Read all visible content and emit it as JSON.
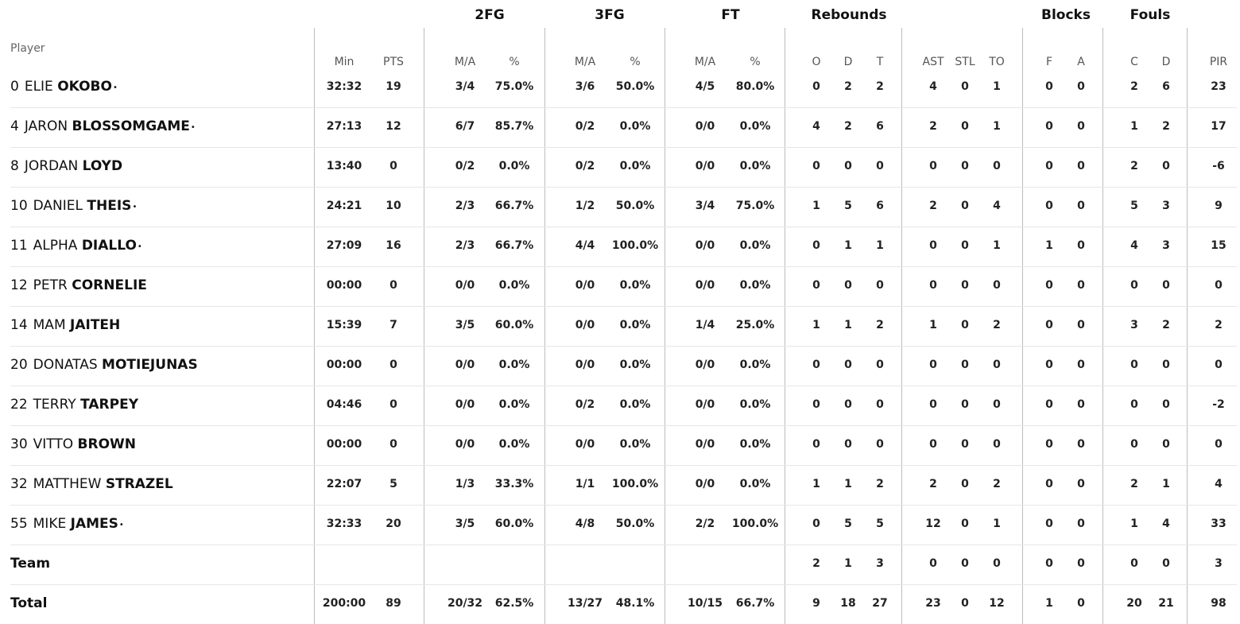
{
  "header": {
    "player_label": "Player",
    "groups": [
      "2FG",
      "3FG",
      "FT",
      "Rebounds",
      "Blocks",
      "Fouls"
    ],
    "columns": [
      "Min",
      "PTS",
      "M/A",
      "%",
      "M/A",
      "%",
      "M/A",
      "%",
      "O",
      "D",
      "T",
      "AST",
      "STL",
      "TO",
      "F",
      "A",
      "C",
      "D",
      "PIR"
    ]
  },
  "starter_mark": "•",
  "players": [
    {
      "number": "0",
      "first": "ELIE",
      "last": "OKOBO",
      "starter": true,
      "stats": [
        "32:32",
        "19",
        "3/4",
        "75.0%",
        "3/6",
        "50.0%",
        "4/5",
        "80.0%",
        "0",
        "2",
        "2",
        "4",
        "0",
        "1",
        "0",
        "0",
        "2",
        "6",
        "23"
      ]
    },
    {
      "number": "4",
      "first": "JARON",
      "last": "BLOSSOMGAME",
      "starter": true,
      "stats": [
        "27:13",
        "12",
        "6/7",
        "85.7%",
        "0/2",
        "0.0%",
        "0/0",
        "0.0%",
        "4",
        "2",
        "6",
        "2",
        "0",
        "1",
        "0",
        "0",
        "1",
        "2",
        "17"
      ]
    },
    {
      "number": "8",
      "first": "JORDAN",
      "last": "LOYD",
      "starter": false,
      "stats": [
        "13:40",
        "0",
        "0/2",
        "0.0%",
        "0/2",
        "0.0%",
        "0/0",
        "0.0%",
        "0",
        "0",
        "0",
        "0",
        "0",
        "0",
        "0",
        "0",
        "2",
        "0",
        "-6"
      ]
    },
    {
      "number": "10",
      "first": "DANIEL",
      "last": "THEIS",
      "starter": true,
      "stats": [
        "24:21",
        "10",
        "2/3",
        "66.7%",
        "1/2",
        "50.0%",
        "3/4",
        "75.0%",
        "1",
        "5",
        "6",
        "2",
        "0",
        "4",
        "0",
        "0",
        "5",
        "3",
        "9"
      ]
    },
    {
      "number": "11",
      "first": "ALPHA",
      "last": "DIALLO",
      "starter": true,
      "stats": [
        "27:09",
        "16",
        "2/3",
        "66.7%",
        "4/4",
        "100.0%",
        "0/0",
        "0.0%",
        "0",
        "1",
        "1",
        "0",
        "0",
        "1",
        "1",
        "0",
        "4",
        "3",
        "15"
      ]
    },
    {
      "number": "12",
      "first": "PETR",
      "last": "CORNELIE",
      "starter": false,
      "stats": [
        "00:00",
        "0",
        "0/0",
        "0.0%",
        "0/0",
        "0.0%",
        "0/0",
        "0.0%",
        "0",
        "0",
        "0",
        "0",
        "0",
        "0",
        "0",
        "0",
        "0",
        "0",
        "0"
      ]
    },
    {
      "number": "14",
      "first": "MAM",
      "last": "JAITEH",
      "starter": false,
      "stats": [
        "15:39",
        "7",
        "3/5",
        "60.0%",
        "0/0",
        "0.0%",
        "1/4",
        "25.0%",
        "1",
        "1",
        "2",
        "1",
        "0",
        "2",
        "0",
        "0",
        "3",
        "2",
        "2"
      ]
    },
    {
      "number": "20",
      "first": "DONATAS",
      "last": "MOTIEJUNAS",
      "starter": false,
      "stats": [
        "00:00",
        "0",
        "0/0",
        "0.0%",
        "0/0",
        "0.0%",
        "0/0",
        "0.0%",
        "0",
        "0",
        "0",
        "0",
        "0",
        "0",
        "0",
        "0",
        "0",
        "0",
        "0"
      ]
    },
    {
      "number": "22",
      "first": "TERRY",
      "last": "TARPEY",
      "starter": false,
      "stats": [
        "04:46",
        "0",
        "0/0",
        "0.0%",
        "0/2",
        "0.0%",
        "0/0",
        "0.0%",
        "0",
        "0",
        "0",
        "0",
        "0",
        "0",
        "0",
        "0",
        "0",
        "0",
        "-2"
      ]
    },
    {
      "number": "30",
      "first": "VITTO",
      "last": "BROWN",
      "starter": false,
      "stats": [
        "00:00",
        "0",
        "0/0",
        "0.0%",
        "0/0",
        "0.0%",
        "0/0",
        "0.0%",
        "0",
        "0",
        "0",
        "0",
        "0",
        "0",
        "0",
        "0",
        "0",
        "0",
        "0"
      ]
    },
    {
      "number": "32",
      "first": "MATTHEW",
      "last": "STRAZEL",
      "starter": false,
      "stats": [
        "22:07",
        "5",
        "1/3",
        "33.3%",
        "1/1",
        "100.0%",
        "0/0",
        "0.0%",
        "1",
        "1",
        "2",
        "2",
        "0",
        "2",
        "0",
        "0",
        "2",
        "1",
        "4"
      ]
    },
    {
      "number": "55",
      "first": "MIKE",
      "last": "JAMES",
      "starter": true,
      "stats": [
        "32:33",
        "20",
        "3/5",
        "60.0%",
        "4/8",
        "50.0%",
        "2/2",
        "100.0%",
        "0",
        "5",
        "5",
        "12",
        "0",
        "1",
        "0",
        "0",
        "1",
        "4",
        "33"
      ]
    }
  ],
  "team_row": {
    "label": "Team",
    "stats": [
      "",
      "",
      "",
      "",
      "",
      "",
      "",
      "",
      "2",
      "1",
      "3",
      "0",
      "0",
      "0",
      "0",
      "0",
      "0",
      "0",
      "3"
    ]
  },
  "total_row": {
    "label": "Total",
    "stats": [
      "200:00",
      "89",
      "20/32",
      "62.5%",
      "13/27",
      "48.1%",
      "10/15",
      "66.7%",
      "9",
      "18",
      "27",
      "23",
      "0",
      "12",
      "1",
      "0",
      "20",
      "21",
      "98"
    ]
  }
}
